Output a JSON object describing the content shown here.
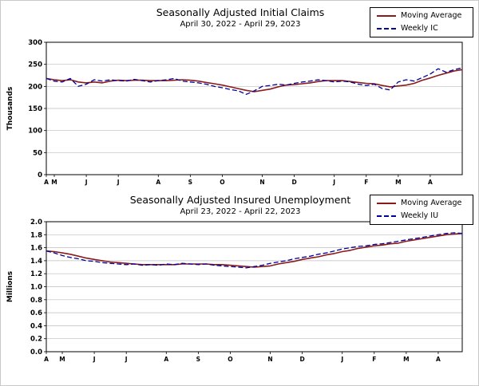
{
  "page": {
    "background": "#ffffff"
  },
  "chart_data": [
    {
      "type": "line",
      "title": "Seasonally Adjusted Initial Claims",
      "subtitle": "April 30, 2022 - April 29, 2023",
      "ylabel": "Thousands",
      "ymin": 0,
      "ymax": 300,
      "y_tick_labels": [
        "0",
        "50",
        "100",
        "150",
        "200",
        "250",
        "300"
      ],
      "x_tick_labels": [
        "A",
        "M",
        "J",
        "J",
        "A",
        "S",
        "O",
        "N",
        "D",
        "J",
        "F",
        "M",
        "A"
      ],
      "x_tick_weeks": [
        0,
        1,
        5,
        9,
        14,
        18,
        22,
        27,
        31,
        36,
        40,
        44,
        48
      ],
      "grid": "horizontal",
      "legend_position": "top-right",
      "series": [
        {
          "name": "Moving Average",
          "style": "solid",
          "color": "#8b1a1a",
          "values": [
            218,
            215,
            213,
            215,
            210,
            208,
            210,
            208,
            212,
            214,
            213,
            214,
            214,
            213,
            213,
            213,
            214,
            215,
            214,
            212,
            209,
            206,
            203,
            199,
            195,
            191,
            188,
            191,
            194,
            199,
            203,
            204,
            206,
            208,
            211,
            213,
            213,
            213,
            211,
            209,
            207,
            206,
            202,
            199,
            201,
            203,
            207,
            214,
            219,
            225,
            230,
            235,
            238
          ]
        },
        {
          "name": "Weekly IC",
          "style": "dashed",
          "color": "#00009c",
          "values": [
            218,
            212,
            210,
            218,
            200,
            205,
            215,
            212,
            215,
            213,
            212,
            216,
            213,
            210,
            213,
            215,
            218,
            212,
            210,
            208,
            205,
            200,
            197,
            193,
            190,
            182,
            190,
            200,
            202,
            205,
            203,
            207,
            210,
            212,
            215,
            213,
            210,
            212,
            210,
            205,
            202,
            205,
            195,
            192,
            210,
            215,
            212,
            220,
            228,
            240,
            232,
            238,
            242
          ]
        }
      ]
    },
    {
      "type": "line",
      "title": "Seasonally Adjusted Insured Unemployment",
      "subtitle": "April 23, 2022 - April 22, 2023",
      "ylabel": "Millions",
      "ymin": 0,
      "ymax": 2,
      "y_tick_labels": [
        "0.0",
        "0.2",
        "0.4",
        "0.6",
        "0.8",
        "1.0",
        "1.2",
        "1.4",
        "1.6",
        "1.8",
        "2.0"
      ],
      "x_tick_labels": [
        "A",
        "M",
        "J",
        "J",
        "A",
        "S",
        "O",
        "N",
        "D",
        "J",
        "F",
        "M",
        "A"
      ],
      "x_tick_weeks": [
        0,
        2,
        6,
        10,
        15,
        19,
        23,
        28,
        32,
        37,
        41,
        45,
        49
      ],
      "grid": "horizontal",
      "legend_position": "top-right",
      "series": [
        {
          "name": "Moving Average",
          "style": "solid",
          "color": "#8b1a1a",
          "values": [
            1.55,
            1.54,
            1.52,
            1.5,
            1.47,
            1.44,
            1.42,
            1.4,
            1.38,
            1.37,
            1.36,
            1.35,
            1.34,
            1.34,
            1.34,
            1.34,
            1.34,
            1.35,
            1.35,
            1.35,
            1.35,
            1.34,
            1.34,
            1.33,
            1.32,
            1.31,
            1.3,
            1.31,
            1.32,
            1.35,
            1.37,
            1.39,
            1.42,
            1.44,
            1.46,
            1.49,
            1.51,
            1.54,
            1.56,
            1.59,
            1.61,
            1.63,
            1.64,
            1.66,
            1.67,
            1.7,
            1.72,
            1.74,
            1.76,
            1.78,
            1.8,
            1.81,
            1.82
          ]
        },
        {
          "name": "Weekly IU",
          "style": "dashed",
          "color": "#00009c",
          "values": [
            1.55,
            1.52,
            1.48,
            1.45,
            1.43,
            1.4,
            1.39,
            1.37,
            1.36,
            1.35,
            1.34,
            1.35,
            1.33,
            1.34,
            1.33,
            1.35,
            1.34,
            1.36,
            1.35,
            1.34,
            1.35,
            1.33,
            1.32,
            1.31,
            1.3,
            1.29,
            1.31,
            1.33,
            1.36,
            1.38,
            1.4,
            1.43,
            1.45,
            1.47,
            1.5,
            1.52,
            1.55,
            1.58,
            1.6,
            1.62,
            1.63,
            1.65,
            1.66,
            1.68,
            1.7,
            1.72,
            1.74,
            1.76,
            1.78,
            1.8,
            1.82,
            1.83,
            1.82
          ]
        }
      ]
    }
  ]
}
